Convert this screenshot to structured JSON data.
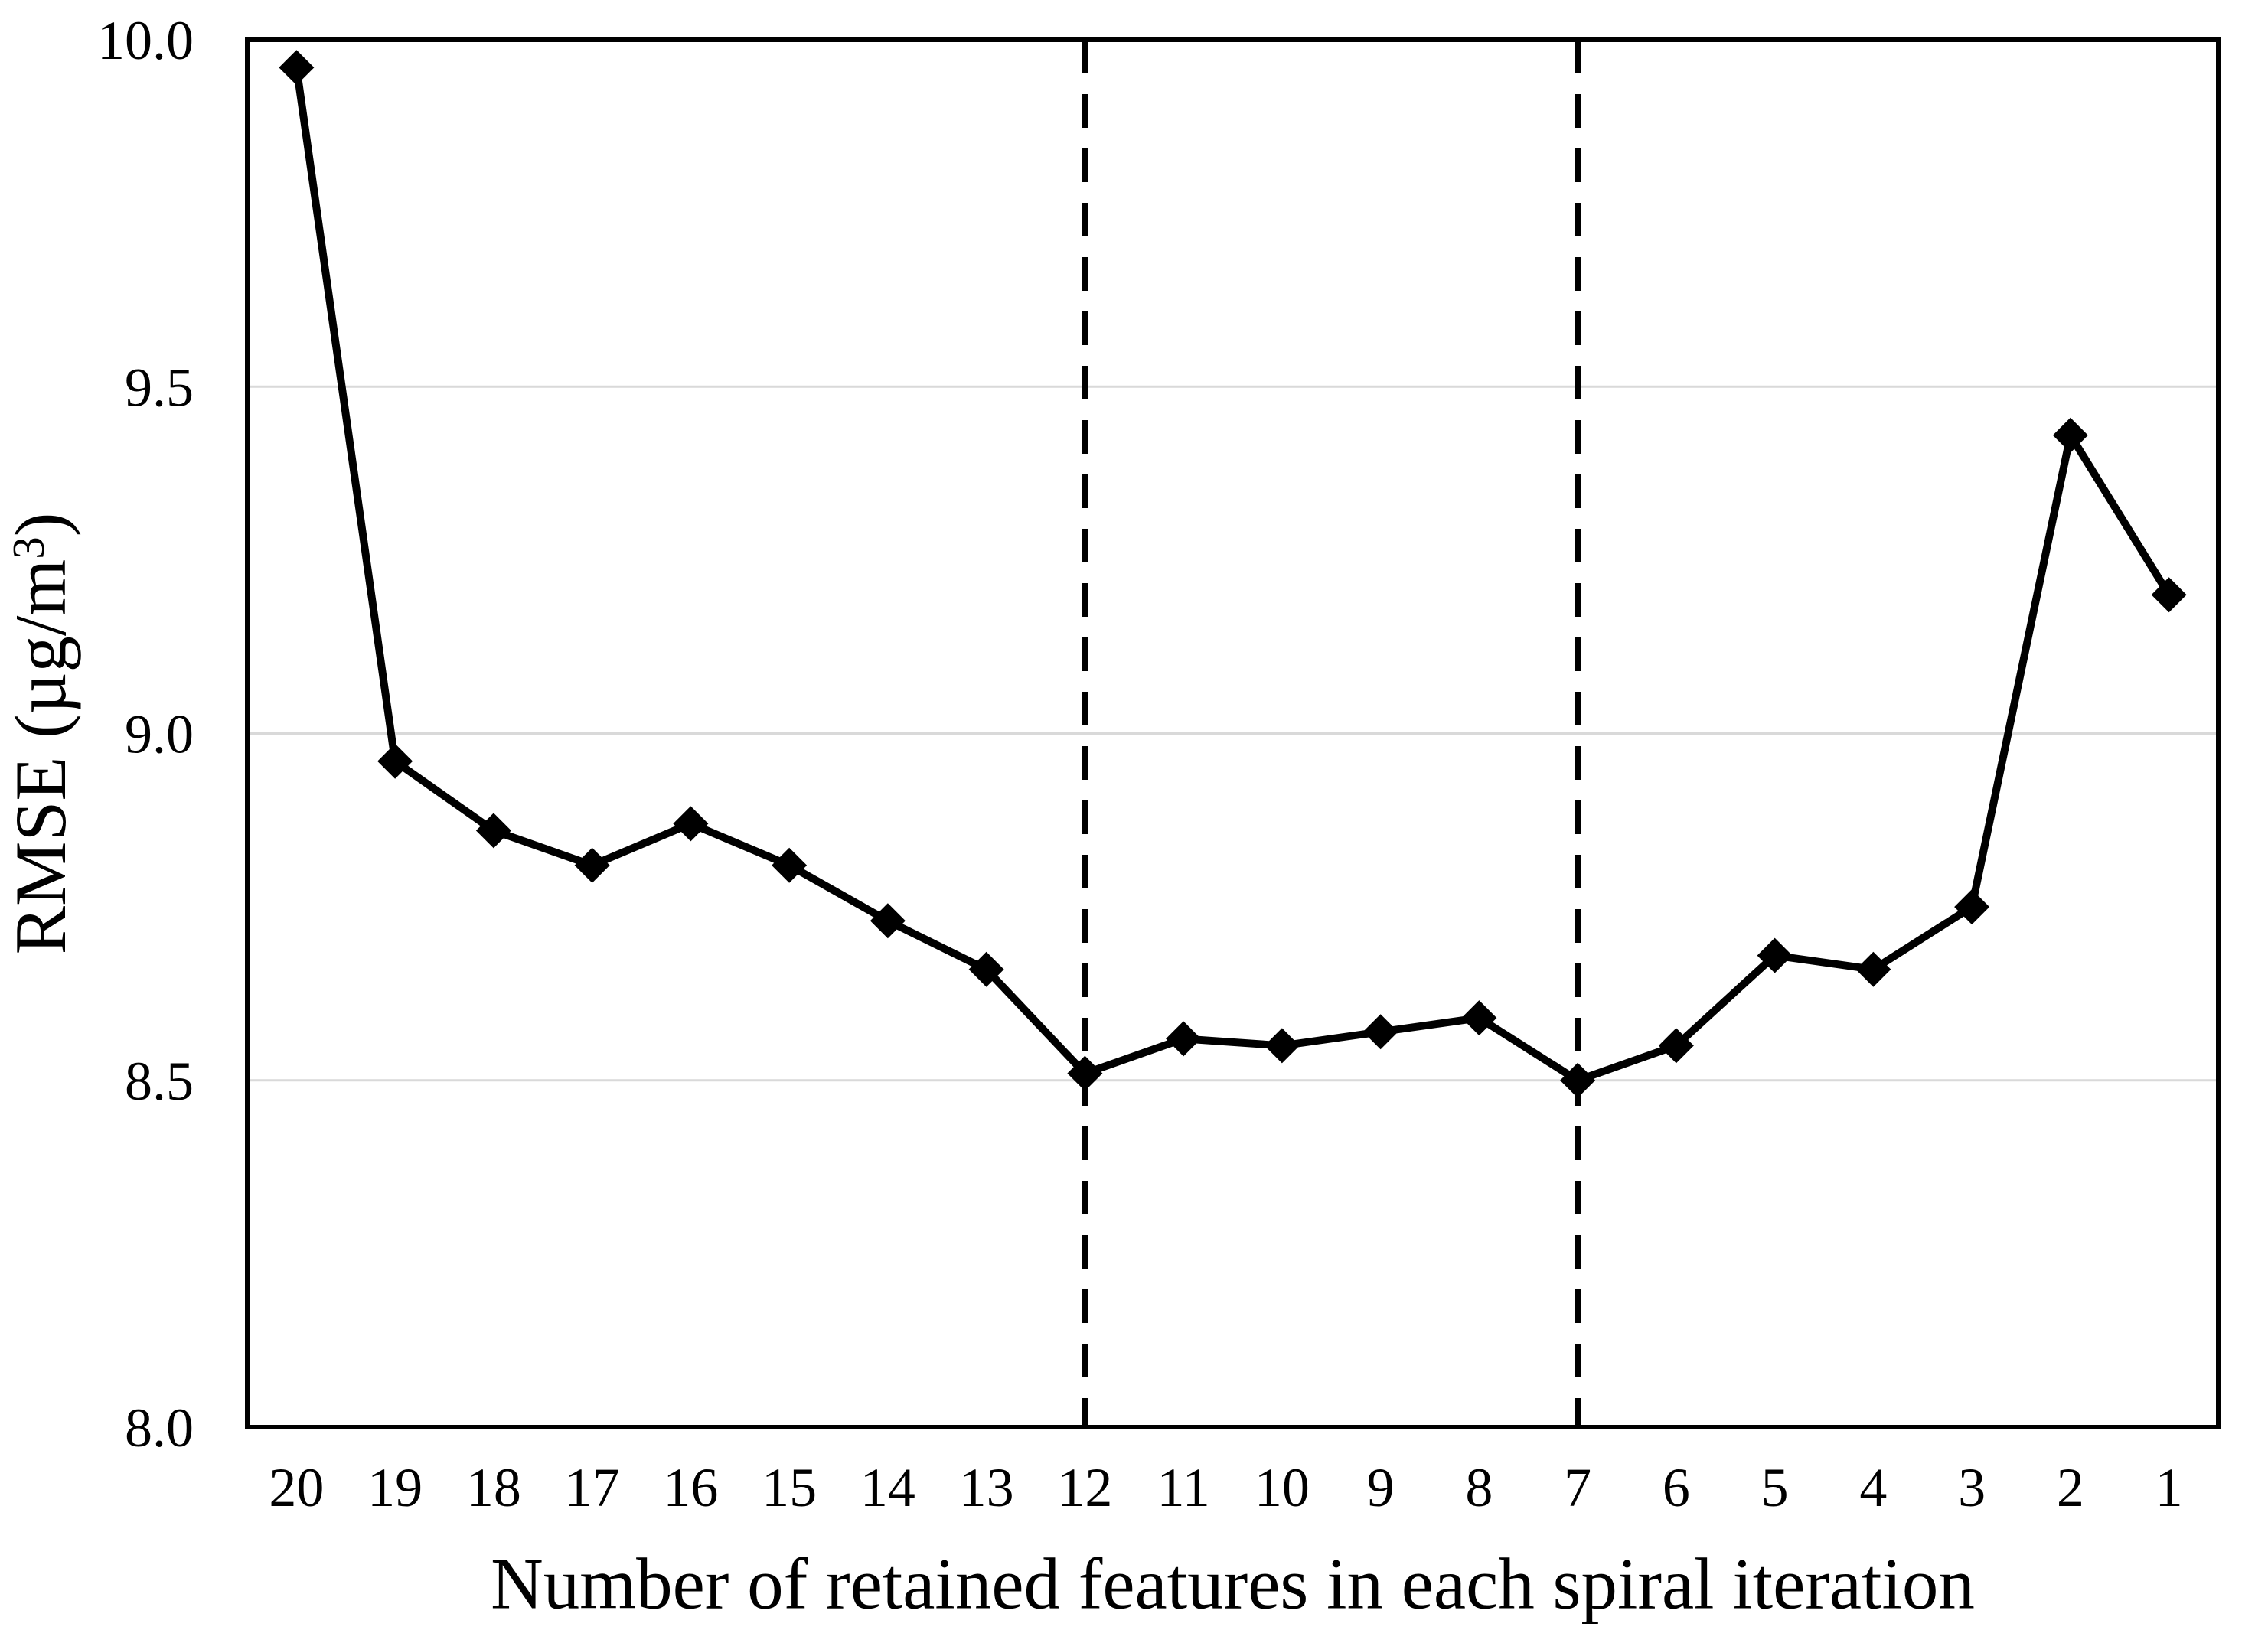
{
  "page": {
    "background": "#ffffff"
  },
  "chart_data": {
    "type": "line",
    "title": "",
    "categories": [
      "20",
      "19",
      "18",
      "17",
      "16",
      "15",
      "14",
      "13",
      "12",
      "11",
      "10",
      "9",
      "8",
      "7",
      "6",
      "5",
      "4",
      "3",
      "2",
      "1"
    ],
    "values": [
      9.96,
      8.96,
      8.86,
      8.81,
      8.87,
      8.81,
      8.73,
      8.66,
      8.51,
      8.56,
      8.55,
      8.57,
      8.59,
      8.5,
      8.55,
      8.68,
      8.66,
      8.75,
      9.43,
      9.2
    ],
    "xlabel": "Number of retained features in each spiral iteration",
    "ylabel": "RMSE (µg/m³)",
    "ylim": [
      8.0,
      10.0
    ],
    "ytick_values": [
      8.0,
      8.5,
      9.0,
      9.5,
      10.0
    ],
    "ytick_labels": [
      "8.0",
      "8.5",
      "9.0",
      "9.5",
      "10.0"
    ],
    "grid": "horizontal",
    "legend": "none",
    "marker": "diamond",
    "vline_categories": [
      "12",
      "7"
    ],
    "colors": {
      "line": "#000000",
      "marker": "#000000",
      "grid": "#d9d9d9",
      "border": "#000000",
      "dashed_line": "#000000",
      "text": "#000000",
      "background": "#ffffff"
    }
  }
}
